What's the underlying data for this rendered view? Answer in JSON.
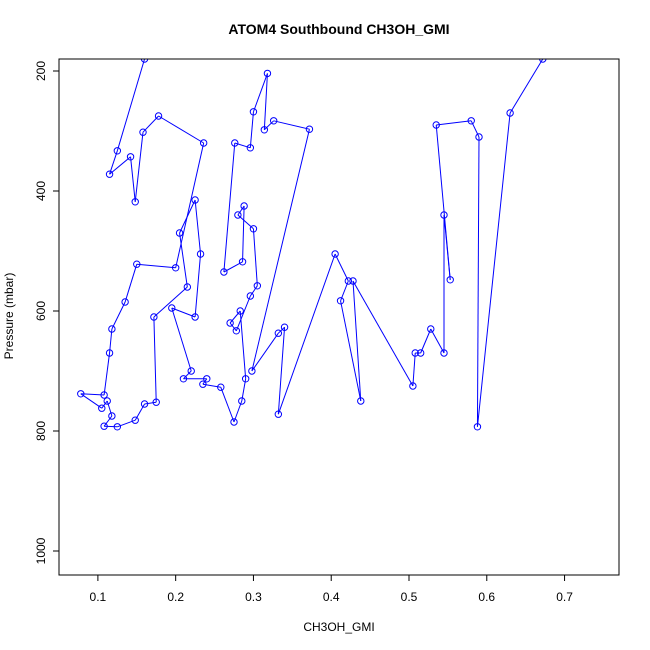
{
  "chart_data": {
    "type": "line",
    "title": "ATOM4 Southbound CH3OH_GMI",
    "xlabel": "CH3OH_GMI",
    "ylabel": "Pressure (mbar)",
    "xlim": [
      0.05,
      0.77
    ],
    "ylim": [
      1040,
      180
    ],
    "y_reversed": true,
    "x_ticks": [
      0.1,
      0.2,
      0.3,
      0.4,
      0.5,
      0.6,
      0.7
    ],
    "x_tick_labels": [
      "0.1",
      "0.2",
      "0.3",
      "0.4",
      "0.5",
      "0.6",
      "0.7"
    ],
    "y_ticks": [
      200,
      400,
      600,
      800,
      1000
    ],
    "y_tick_labels": [
      "200",
      "400",
      "600",
      "800",
      "1000"
    ],
    "grid": false,
    "color": "#0000ff",
    "series": [
      {
        "marker": "open-circle",
        "points": [
          [
            0.16,
            180
          ],
          [
            0.125,
            333
          ],
          [
            0.115,
            372
          ],
          [
            0.142,
            343
          ],
          [
            0.148,
            418
          ],
          [
            0.158,
            302
          ],
          [
            0.178,
            275
          ],
          [
            0.236,
            320
          ],
          [
            0.2,
            528
          ],
          [
            0.15,
            522
          ],
          [
            0.135,
            585
          ],
          [
            0.118,
            630
          ],
          [
            0.115,
            670
          ],
          [
            0.108,
            740
          ],
          [
            0.078,
            738
          ],
          [
            0.105,
            762
          ],
          [
            0.112,
            750
          ],
          [
            0.118,
            775
          ],
          [
            0.108,
            792
          ],
          [
            0.125,
            793
          ],
          [
            0.148,
            782
          ],
          [
            0.16,
            755
          ],
          [
            0.175,
            752
          ],
          [
            0.172,
            610
          ],
          [
            0.215,
            560
          ],
          [
            0.205,
            470
          ],
          [
            0.225,
            415
          ],
          [
            0.232,
            505
          ],
          [
            0.225,
            610
          ],
          [
            0.195,
            595
          ],
          [
            0.22,
            700
          ],
          [
            0.21,
            713
          ],
          [
            0.24,
            713
          ],
          [
            0.235,
            722
          ],
          [
            0.258,
            727
          ],
          [
            0.275,
            785
          ],
          [
            0.285,
            750
          ],
          [
            0.29,
            713
          ],
          [
            0.283,
            600
          ],
          [
            0.27,
            620
          ],
          [
            0.278,
            633
          ],
          [
            0.296,
            575
          ],
          [
            0.305,
            558
          ],
          [
            0.3,
            463
          ],
          [
            0.28,
            440
          ],
          [
            0.288,
            425
          ],
          [
            0.286,
            518
          ],
          [
            0.262,
            535
          ],
          [
            0.276,
            320
          ],
          [
            0.296,
            328
          ],
          [
            0.3,
            268
          ],
          [
            0.318,
            204
          ],
          [
            0.314,
            298
          ],
          [
            0.326,
            283
          ],
          [
            0.372,
            297
          ],
          [
            0.298,
            700
          ],
          [
            0.332,
            637
          ],
          [
            0.34,
            627
          ],
          [
            0.332,
            772
          ],
          [
            0.405,
            505
          ],
          [
            0.422,
            550
          ],
          [
            0.412,
            583
          ],
          [
            0.438,
            750
          ],
          [
            0.428,
            550
          ],
          [
            0.505,
            725
          ],
          [
            0.508,
            670
          ],
          [
            0.515,
            670
          ],
          [
            0.528,
            630
          ],
          [
            0.545,
            670
          ],
          [
            0.545,
            440
          ],
          [
            0.553,
            548
          ],
          [
            0.535,
            290
          ],
          [
            0.58,
            283
          ],
          [
            0.59,
            310
          ],
          [
            0.588,
            793
          ],
          [
            0.63,
            270
          ],
          [
            0.672,
            180
          ]
        ]
      }
    ]
  }
}
